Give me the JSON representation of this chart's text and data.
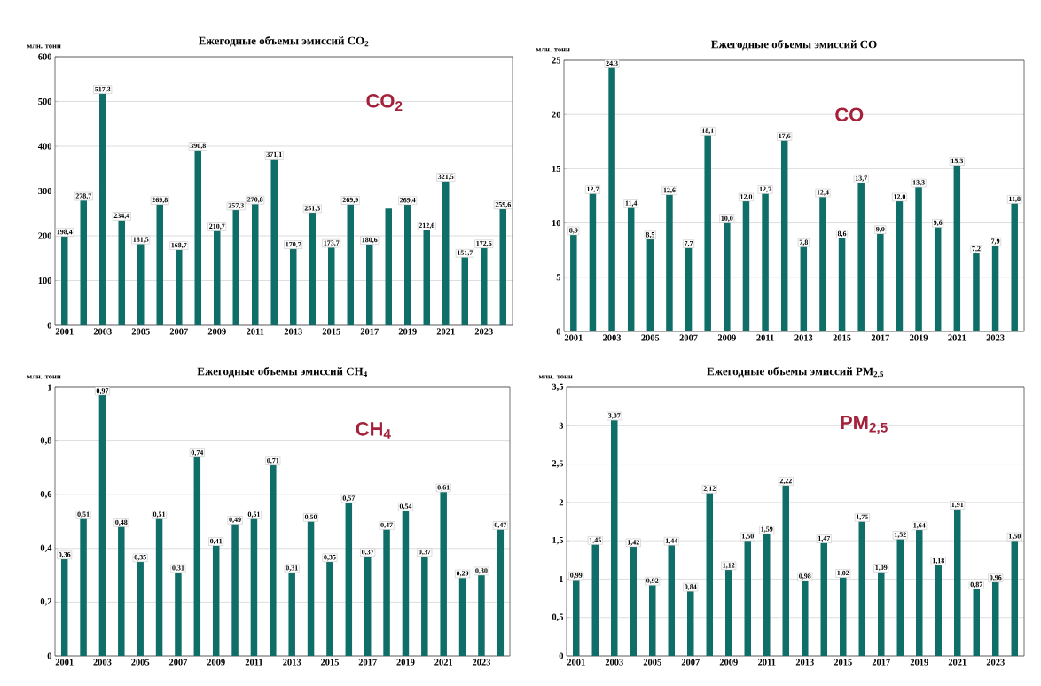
{
  "chart_data": [
    {
      "type": "bar",
      "title": "Ежегодные объемы эмиссий CO$_{2}$",
      "ylabel": "млн. тонн",
      "annotations": [
        "CO$_{2}$"
      ],
      "categories": [
        "2001",
        null,
        "2003",
        null,
        "2005",
        null,
        "2007",
        null,
        "2009",
        null,
        "2011",
        null,
        "2013",
        null,
        "2015",
        null,
        "2017",
        null,
        "2019",
        null,
        "2021",
        null,
        "2023",
        null
      ],
      "values": [
        198.4,
        278.7,
        517.3,
        234.4,
        181.5,
        269.8,
        168.7,
        390.8,
        210.7,
        257.3,
        270.8,
        371.1,
        170.7,
        251.3,
        173.7,
        269.9,
        180.6,
        261,
        269.4,
        212.6,
        321.5,
        151.7,
        172.6,
        259.6
      ],
      "value_labels": [
        "198,4",
        "278,7",
        "517,3",
        "234,4",
        "181,5",
        "269,8",
        "168,7",
        "390,8",
        "210,7",
        "257,3",
        "270,8",
        "371,1",
        "170,7",
        "251,3",
        "173,7",
        "269,9",
        "180,6",
        null,
        "269,4",
        "212,6",
        "321,5",
        "151,7",
        "172,6",
        "259,6"
      ],
      "color": "#0f6e68",
      "ylim": [
        0,
        600
      ],
      "yticks": [
        0,
        100,
        200,
        300,
        400,
        500,
        600
      ],
      "grid": "y"
    },
    {
      "type": "bar",
      "title": "Ежегодные объемы эмиссий CO",
      "ylabel": "млн. тонн",
      "annotations": [
        "CO"
      ],
      "categories": [
        "2001",
        null,
        "2003",
        null,
        "2005",
        null,
        "2007",
        null,
        "2009",
        null,
        "2011",
        null,
        "2013",
        null,
        "2015",
        null,
        "2017",
        null,
        "2019",
        null,
        "2021",
        null,
        "2023",
        null
      ],
      "values": [
        8.9,
        12.7,
        24.3,
        11.4,
        8.5,
        12.6,
        7.7,
        18.1,
        10.0,
        12.0,
        12.7,
        17.6,
        7.8,
        12.4,
        8.6,
        13.7,
        9.0,
        12.0,
        13.3,
        9.6,
        15.3,
        7.2,
        7.9,
        11.8
      ],
      "value_labels": [
        "8,9",
        "12,7",
        "24,3",
        "11,4",
        "8,5",
        "12,6",
        "7,7",
        "18,1",
        "10,0",
        "12,0",
        "12,7",
        "17,6",
        "7,8",
        "12,4",
        "8,6",
        "13,7",
        "9,0",
        "12,0",
        "13,3",
        "9,6",
        "15,3",
        "7,2",
        "7,9",
        "11,8"
      ],
      "color": "#0f6e68",
      "ylim": [
        0,
        25
      ],
      "yticks": [
        0,
        5,
        10,
        15,
        20,
        25
      ],
      "grid": "y"
    },
    {
      "type": "bar",
      "title": "Ежегодные объемы  эмиссий CH$_{4}$",
      "ylabel": "млн. тонн",
      "annotations": [
        "CH$_{4}$"
      ],
      "categories": [
        "2001",
        null,
        "2003",
        null,
        "2005",
        null,
        "2007",
        null,
        "2009",
        null,
        "2011",
        null,
        "2013",
        null,
        "2015",
        null,
        "2017",
        null,
        "2019",
        null,
        "2021",
        null,
        "2023",
        null
      ],
      "values": [
        0.36,
        0.51,
        0.97,
        0.48,
        0.35,
        0.51,
        0.31,
        0.74,
        0.41,
        0.49,
        0.51,
        0.71,
        0.31,
        0.5,
        0.35,
        0.57,
        0.37,
        0.47,
        0.54,
        0.37,
        0.61,
        0.29,
        0.3,
        0.47
      ],
      "value_labels": [
        "0,36",
        "0,51",
        "0,97",
        "0,48",
        "0,35",
        "0,51",
        "0,31",
        "0,74",
        "0,41",
        "0,49",
        "0,51",
        "0,71",
        "0,31",
        "0,50",
        "0,35",
        "0,57",
        "0,37",
        "0,47",
        "0,54",
        "0,37",
        "0,61",
        "0,29",
        "0,30",
        "0,47"
      ],
      "color": "#0f6e68",
      "ylim": [
        0,
        1
      ],
      "yticks": [
        0,
        {
          "value": 0.2,
          "label": "0,2"
        },
        {
          "value": 0.4,
          "label": "0,4"
        },
        {
          "value": 0.6,
          "label": "0,6"
        },
        {
          "value": 0.8,
          "label": "0,8"
        },
        1
      ],
      "grid": "y"
    },
    {
      "type": "bar",
      "title": "Ежегодные объемы эмиссий PM$_{2.5}$",
      "ylabel": "млн. тонн",
      "annotations": [
        "PM$_{2,5}$"
      ],
      "categories": [
        "2001",
        null,
        "2003",
        null,
        "2005",
        null,
        "2007",
        null,
        "2009",
        null,
        "2011",
        null,
        "2013",
        null,
        "2015",
        null,
        "2017",
        null,
        "2019",
        null,
        "2021",
        null,
        "2023",
        null
      ],
      "values": [
        0.99,
        1.45,
        3.07,
        1.42,
        0.92,
        1.44,
        0.84,
        2.12,
        1.12,
        1.5,
        1.59,
        2.22,
        0.98,
        1.47,
        1.02,
        1.75,
        1.09,
        1.52,
        1.64,
        1.18,
        1.91,
        0.87,
        0.96,
        1.5
      ],
      "value_labels": [
        "0,99",
        "1,45",
        "3,07",
        "1,42",
        "0,92",
        "1,44",
        "0,84",
        "2,12",
        "1,12",
        "1,50",
        "1,59",
        "2,22",
        "0,98",
        "1,47",
        "1,02",
        "1,75",
        "1,09",
        "1,52",
        "1,64",
        "1,18",
        "1,91",
        "0,87",
        "0,96",
        "1,50"
      ],
      "color": "#0f6e68",
      "ylim": [
        0,
        3.5
      ],
      "yticks": [
        0,
        {
          "value": 0.5,
          "label": "0,5"
        },
        1,
        {
          "value": 1.5,
          "label": "1,5"
        },
        2,
        {
          "value": 2.5,
          "label": "2,5"
        },
        3,
        {
          "value": 3.5,
          "label": "3,5"
        }
      ],
      "grid": "y"
    }
  ]
}
